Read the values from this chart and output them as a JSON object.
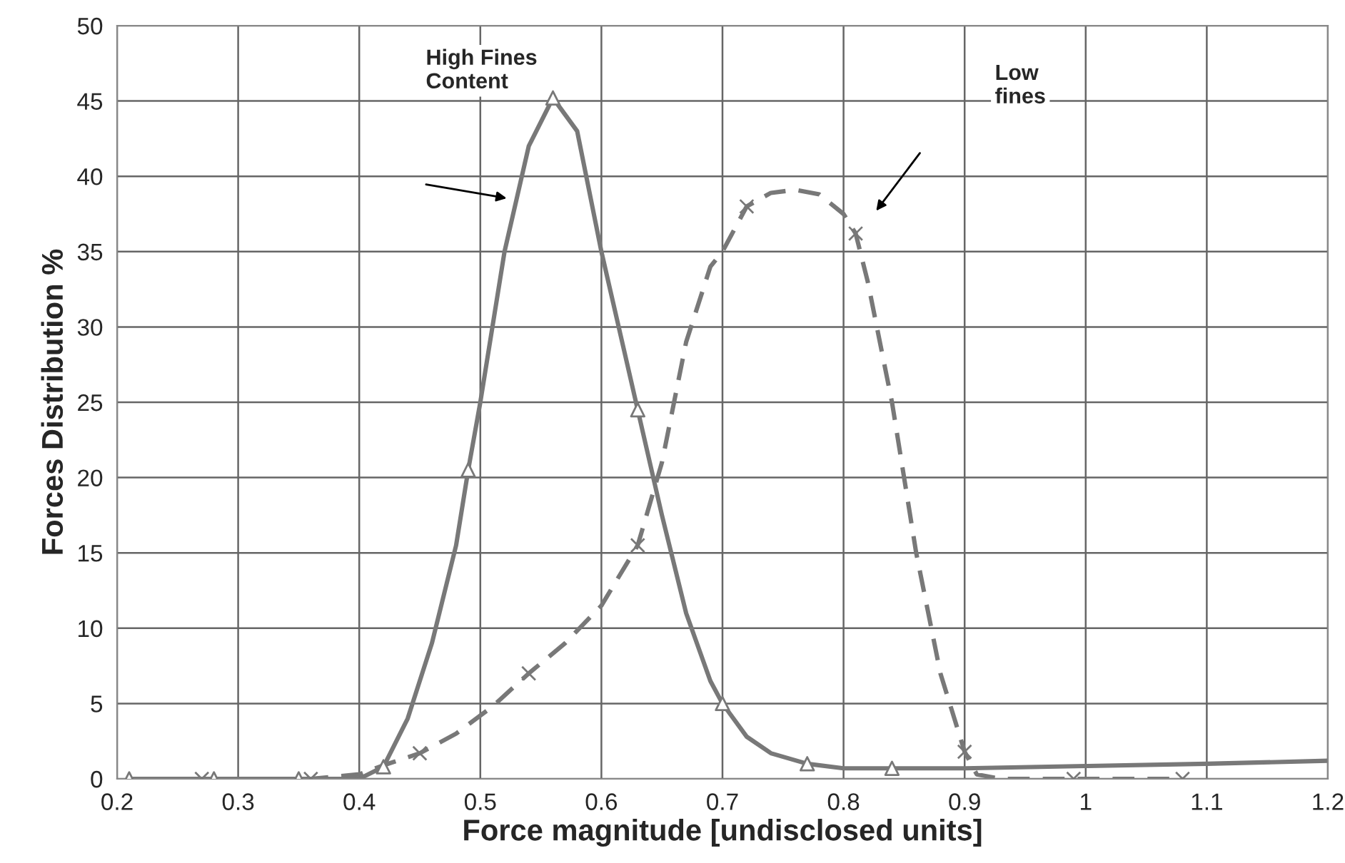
{
  "chart_data": {
    "type": "line",
    "xlabel": "Force magnitude [undisclosed units]",
    "ylabel": "Forces Distribution %",
    "xlim": [
      0.2,
      1.2
    ],
    "xticks": [
      0.2,
      0.3,
      0.4,
      0.5,
      0.6,
      0.7,
      0.8,
      0.9,
      1,
      1.1,
      1.2
    ],
    "ylim": [
      0,
      50
    ],
    "yticks": [
      0,
      5,
      10,
      15,
      20,
      25,
      30,
      35,
      40,
      45,
      50
    ],
    "grid": true,
    "legend": false,
    "series": [
      {
        "color": "#787878",
        "line_style": "solid",
        "x": [
          0.21,
          0.28,
          0.35,
          0.4,
          0.42,
          0.44,
          0.46,
          0.48,
          0.49,
          0.5,
          0.52,
          0.54,
          0.56,
          0.58,
          0.6,
          0.62,
          0.63,
          0.65,
          0.67,
          0.69,
          0.7,
          0.72,
          0.74,
          0.77,
          0.8,
          0.84,
          0.9,
          1.0,
          1.1,
          1.2
        ],
        "values": [
          0,
          0,
          0,
          0,
          0.8,
          4,
          9,
          15.5,
          20.5,
          25,
          35,
          42,
          45.2,
          43,
          35,
          28,
          24.5,
          17.5,
          11,
          6.5,
          5,
          2.8,
          1.7,
          1,
          0.7,
          0.7,
          0.7,
          0.85,
          1,
          1.2
        ]
      },
      {
        "type": "scatter",
        "color": "#787878",
        "marker": "triangle",
        "x": [
          0.21,
          0.28,
          0.35,
          0.42,
          0.49,
          0.56,
          0.63,
          0.7,
          0.77,
          0.84
        ],
        "values": [
          0,
          0,
          0,
          0.8,
          20.5,
          45.2,
          24.5,
          5,
          1,
          0.7
        ]
      },
      {
        "color": "#787878",
        "line_style": "dashed",
        "x": [
          0.27,
          0.36,
          0.4,
          0.42,
          0.45,
          0.48,
          0.51,
          0.54,
          0.57,
          0.6,
          0.63,
          0.65,
          0.67,
          0.69,
          0.7,
          0.72,
          0.74,
          0.76,
          0.78,
          0.8,
          0.81,
          0.82,
          0.84,
          0.86,
          0.88,
          0.9,
          0.91,
          0.93,
          0.96,
          0.99,
          1.08
        ],
        "values": [
          0,
          0,
          0.3,
          0.9,
          1.7,
          3,
          4.8,
          7,
          9,
          11.5,
          15.5,
          21,
          29,
          34,
          35,
          38,
          38.9,
          39.1,
          38.8,
          37.5,
          36.2,
          33,
          25,
          15,
          7,
          1.8,
          0.3,
          0,
          0,
          0,
          0
        ]
      },
      {
        "type": "scatter",
        "color": "#787878",
        "marker": "cross",
        "x": [
          0.27,
          0.36,
          0.45,
          0.54,
          0.63,
          0.72,
          0.81,
          0.9,
          0.99,
          1.08
        ],
        "values": [
          0,
          0,
          1.7,
          7,
          15.5,
          38,
          36.2,
          1.8,
          0,
          0
        ]
      }
    ],
    "annotations": [
      "High Fines\nContent",
      "Low\nfines"
    ]
  }
}
